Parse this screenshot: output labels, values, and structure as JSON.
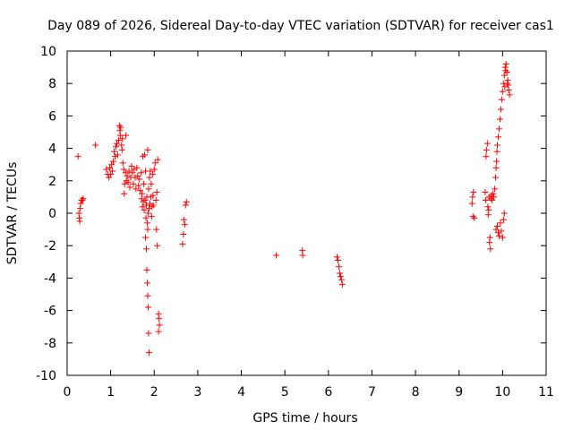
{
  "chart_data": {
    "type": "scatter",
    "title": "Day 089 of 2026, Sidereal Day-to-day VTEC variation (SDTVAR) for receiver cas1",
    "xlabel": "GPS time / hours",
    "ylabel": "SDTVAR / TECUs",
    "xlim": [
      0,
      11
    ],
    "ylim": [
      -10,
      10
    ],
    "xticks": [
      "0",
      "1",
      "2",
      "3",
      "4",
      "5",
      "6",
      "7",
      "8",
      "9",
      "10",
      "11"
    ],
    "yticks": [
      "-10",
      "-8",
      "-6",
      "-4",
      "-2",
      "0",
      "2",
      "4",
      "6",
      "8",
      "10"
    ],
    "grid": false,
    "marker": "+",
    "color": "#ff0000",
    "series": [
      {
        "name": "SDTVAR",
        "points": [
          [
            0.25,
            3.5
          ],
          [
            0.27,
            0.0
          ],
          [
            0.28,
            -0.3
          ],
          [
            0.29,
            -0.5
          ],
          [
            0.3,
            0.3
          ],
          [
            0.31,
            0.6
          ],
          [
            0.33,
            0.8
          ],
          [
            0.35,
            0.8
          ],
          [
            0.37,
            0.9
          ],
          [
            0.65,
            4.2
          ],
          [
            0.9,
            2.7
          ],
          [
            0.93,
            2.4
          ],
          [
            0.96,
            2.2
          ],
          [
            0.98,
            2.8
          ],
          [
            1.0,
            2.4
          ],
          [
            1.02,
            3.0
          ],
          [
            1.04,
            2.6
          ],
          [
            1.06,
            3.2
          ],
          [
            1.08,
            3.8
          ],
          [
            1.1,
            3.5
          ],
          [
            1.12,
            4.1
          ],
          [
            1.14,
            4.3
          ],
          [
            1.16,
            3.6
          ],
          [
            1.18,
            4.5
          ],
          [
            1.2,
            5.4
          ],
          [
            1.21,
            5.1
          ],
          [
            1.22,
            4.8
          ],
          [
            1.23,
            5.3
          ],
          [
            1.25,
            4.2
          ],
          [
            1.26,
            3.9
          ],
          [
            1.27,
            4.6
          ],
          [
            1.28,
            3.1
          ],
          [
            1.3,
            2.7
          ],
          [
            1.31,
            1.2
          ],
          [
            1.32,
            1.8
          ],
          [
            1.34,
            2.5
          ],
          [
            1.35,
            4.8
          ],
          [
            1.36,
            2.0
          ],
          [
            1.38,
            2.3
          ],
          [
            1.4,
            1.9
          ],
          [
            1.42,
            2.6
          ],
          [
            1.44,
            1.6
          ],
          [
            1.46,
            2.2
          ],
          [
            1.48,
            2.9
          ],
          [
            1.5,
            2.5
          ],
          [
            1.52,
            1.8
          ],
          [
            1.54,
            2.7
          ],
          [
            1.56,
            2.2
          ],
          [
            1.58,
            1.5
          ],
          [
            1.6,
            2.8
          ],
          [
            1.62,
            2.3
          ],
          [
            1.64,
            1.7
          ],
          [
            1.66,
            2.1
          ],
          [
            1.68,
            1.4
          ],
          [
            1.7,
            2.5
          ],
          [
            1.71,
            0.9
          ],
          [
            1.72,
            1.2
          ],
          [
            1.73,
            0.4
          ],
          [
            1.74,
            3.5
          ],
          [
            1.75,
            0.7
          ],
          [
            1.76,
            1.8
          ],
          [
            1.77,
            0.2
          ],
          [
            1.78,
            3.6
          ],
          [
            1.79,
            0.8
          ],
          [
            1.8,
            2.6
          ],
          [
            1.81,
            -0.3
          ],
          [
            1.82,
            0.5
          ],
          [
            1.83,
            1.0
          ],
          [
            1.84,
            -0.6
          ],
          [
            1.85,
            3.9
          ],
          [
            1.86,
            0.0
          ],
          [
            1.87,
            1.5
          ],
          [
            1.88,
            0.3
          ],
          [
            1.89,
            2.2
          ],
          [
            1.9,
            0.6
          ],
          [
            1.91,
            2.6
          ],
          [
            1.92,
            1.0
          ],
          [
            1.93,
            1.8
          ],
          [
            1.94,
            -0.2
          ],
          [
            1.95,
            0.4
          ],
          [
            1.96,
            2.4
          ],
          [
            1.97,
            1.1
          ],
          [
            1.98,
            0.5
          ],
          [
            2.0,
            2.7
          ],
          [
            2.02,
            3.1
          ],
          [
            2.04,
            0.8
          ],
          [
            2.06,
            1.3
          ],
          [
            2.08,
            3.3
          ],
          [
            1.8,
            -1.5
          ],
          [
            1.82,
            -2.2
          ],
          [
            1.83,
            -3.5
          ],
          [
            1.84,
            -4.3
          ],
          [
            1.85,
            -5.1
          ],
          [
            1.86,
            -5.8
          ],
          [
            1.87,
            -7.4
          ],
          [
            1.88,
            -8.6
          ],
          [
            1.85,
            -1.0
          ],
          [
            2.05,
            -1.0
          ],
          [
            2.07,
            -2.0
          ],
          [
            2.1,
            -6.2
          ],
          [
            2.11,
            -6.5
          ],
          [
            2.12,
            -6.9
          ],
          [
            2.1,
            -7.3
          ],
          [
            2.65,
            -1.9
          ],
          [
            2.67,
            -1.3
          ],
          [
            2.68,
            -0.4
          ],
          [
            2.7,
            -0.7
          ],
          [
            2.72,
            0.5
          ],
          [
            2.74,
            0.7
          ],
          [
            4.8,
            -2.6
          ],
          [
            5.4,
            -2.3
          ],
          [
            5.41,
            -2.6
          ],
          [
            6.2,
            -2.7
          ],
          [
            6.22,
            -2.9
          ],
          [
            6.24,
            -3.3
          ],
          [
            6.26,
            -3.7
          ],
          [
            6.28,
            -3.9
          ],
          [
            6.3,
            -4.1
          ],
          [
            6.32,
            -4.4
          ],
          [
            9.3,
            0.6
          ],
          [
            9.31,
            1.0
          ],
          [
            9.33,
            1.3
          ],
          [
            9.32,
            -0.2
          ],
          [
            9.35,
            -0.3
          ],
          [
            9.6,
            1.3
          ],
          [
            9.61,
            0.8
          ],
          [
            9.62,
            3.5
          ],
          [
            9.63,
            3.9
          ],
          [
            9.65,
            4.3
          ],
          [
            9.66,
            0.4
          ],
          [
            9.67,
            -0.1
          ],
          [
            9.68,
            0.2
          ],
          [
            9.69,
            1.0
          ],
          [
            9.7,
            -1.8
          ],
          [
            9.72,
            -2.2
          ],
          [
            9.71,
            -1.5
          ],
          [
            9.73,
            0.9
          ],
          [
            9.74,
            1.1
          ],
          [
            9.76,
            0.8
          ],
          [
            9.78,
            1.2
          ],
          [
            9.8,
            1.0
          ],
          [
            9.82,
            1.5
          ],
          [
            9.84,
            2.2
          ],
          [
            9.85,
            2.8
          ],
          [
            9.86,
            3.2
          ],
          [
            9.87,
            3.8
          ],
          [
            9.88,
            4.2
          ],
          [
            9.9,
            4.7
          ],
          [
            9.92,
            5.2
          ],
          [
            9.94,
            5.8
          ],
          [
            9.96,
            6.4
          ],
          [
            9.98,
            7.0
          ],
          [
            10.0,
            7.5
          ],
          [
            10.02,
            8.0
          ],
          [
            10.04,
            8.5
          ],
          [
            10.06,
            9.0
          ],
          [
            10.08,
            9.2
          ],
          [
            10.1,
            8.7
          ],
          [
            10.12,
            8.2
          ],
          [
            10.14,
            7.6
          ],
          [
            10.16,
            7.3
          ],
          [
            9.85,
            -1.0
          ],
          [
            9.88,
            -0.8
          ],
          [
            9.9,
            -1.2
          ],
          [
            9.92,
            -1.4
          ],
          [
            9.95,
            -0.6
          ],
          [
            9.97,
            -1.1
          ],
          [
            10.0,
            -1.5
          ],
          [
            10.02,
            -0.4
          ],
          [
            10.04,
            0.0
          ],
          [
            10.05,
            7.8
          ],
          [
            10.07,
            8.8
          ],
          [
            10.11,
            8.0
          ],
          [
            10.13,
            7.9
          ]
        ]
      }
    ]
  }
}
